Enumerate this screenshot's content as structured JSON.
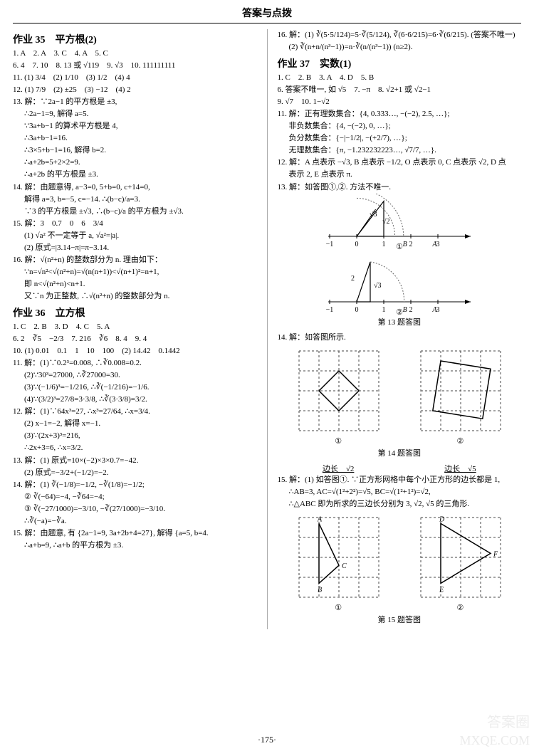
{
  "header": "答案与点拨",
  "page_number": "·175·",
  "watermark1": "MXQE.COM",
  "watermark2": "答案圈",
  "colors": {
    "text": "#000000",
    "bg": "#ffffff",
    "divider": "#aaaaaa",
    "grid_dash": "#444444",
    "curve_dash": "#666666",
    "watermark": "#dddddd"
  },
  "left": {
    "sec35": {
      "title": "作业 35　平方根(2)",
      "l1": "1. A　2. A　3. C　4. A　5. C",
      "l2": "6. 4　7. 10　8. 13 或 √119　9. √3　10. 111111111",
      "l3": "11. (1) 3/4　(2) 1/10　(3) 1/2　(4) 4",
      "l4": "12. (1) 7/9　(2) ±25　(3) −12　(4) 2",
      "l5": "13. 解：∵2a−1 的平方根是 ±3,",
      "l6": "∴2a−1=9, 解得 a=5.",
      "l7": "∵3a+b−1 的算术平方根是 4,",
      "l8": "∴3a+b−1=16.",
      "l9": "∴3×5+b−1=16, 解得 b=2.",
      "l10": "∴a+2b=5+2×2=9.",
      "l11": "∴a+2b 的平方根是 ±3.",
      "l12": "14. 解：由题意得, a−3=0, 5+b=0, c+14=0,",
      "l13": "解得 a=3, b=−5, c=−14. ∴(b−c)/a=3.",
      "l14": "∵3 的平方根是 ±√3, ∴(b−c)/a 的平方根为 ±√3.",
      "l15": "15. 解：3　0.7　0　6　3/4",
      "l16": "(1) √a² 不一定等于 a, √a²=|a|.",
      "l17": "(2) 原式=|3.14−π|=π−3.14.",
      "l18": "16. 解：√(n²+n) 的整数部分为 n. 理由如下：",
      "l19": "∵n=√n²<√(n²+n)=√(n(n+1))<√(n+1)²=n+1,",
      "l20": "即 n<√(n²+n)<n+1.",
      "l21": "又∵n 为正整数, ∴√(n²+n) 的整数部分为 n."
    },
    "sec36": {
      "title": "作业 36　立方根",
      "l1": "1. C　2. B　3. D　4. C　5. A",
      "l2": "6. 2　∛5　−2/3　7. 216　∛6　8. 4　9. 4",
      "l3": "10. (1) 0.01　0.1　1　10　100　(2) 14.42　0.1442",
      "l4": "11. 解：(1)∵0.2³=0.008, ∴∛0.008=0.2.",
      "l5": "(2)∵30³=27000, ∴∛27000=30.",
      "l6": "(3)∵(−1/6)³=−1/216, ∴∛(−1/216)=−1/6.",
      "l7": "(4)∵(3/2)³=27/8=3·3/8, ∴∛(3·3/8)=3/2.",
      "l8": "12. 解：(1)∵64x³=27, ∴x³=27/64, ∴x=3/4.",
      "l9": "(2) x−1=−2, 解得 x=−1.",
      "l10": "(3)∵(2x+3)³=216,",
      "l11": "∴2x+3=6, ∴x=3/2.",
      "l12": "13. 解：(1) 原式=10×(−2)×3×0.7=−42.",
      "l13": "(2) 原式=−3/2+(−1/2)=−2.",
      "l14": "14. 解：(1) ∛(−1/8)=−1/2, −∛(1/8)=−1/2;",
      "l15": "② ∛(−64)=−4, −∛64=−4;",
      "l16": "③ ∛(−27/1000)=−3/10, −∛(27/1000)=−3/10.",
      "l17": "∴∛(−a)=−∛a.",
      "l18": "15. 解：由题意, 有 {2a−1=9, 3a+2b+4=27}, 解得 {a=5, b=4.",
      "l19": "∴a+b=9, ∴a+b 的平方根为 ±3."
    }
  },
  "right": {
    "cont16": {
      "l1": "16. 解：(1) ∛(5·5/124)=5·∛(5/124), ∛(6·6/215)=6·∛(6/215). (答案不唯一)",
      "l2": "(2) ∛(n+n/(n³−1))=n·∛(n/(n³−1)) (n≥2)."
    },
    "sec37": {
      "title": "作业 37　实数(1)",
      "l1": "1. C　2. B　3. A　4. D　5. B",
      "l2": "6. 答案不唯一, 如 √5　7. −π　8. √2+1 或 √2−1",
      "l3": "9. √7　10. 1−√2",
      "l4": "11. 解：正有理数集合：{4, 0.333…, −(−2), 2.5, …};",
      "l5": "非负数集合：{4, −(−2), 0, …};",
      "l6": "负分数集合：{−|−1/2|, −(+2/7), …};",
      "l7": "无理数集合：{π, −1.232232223…, √7/7, …}.",
      "l8": "12. 解：A 点表示 −√3, B 点表示 −1/2, O 点表示 0, C 点表示 √2, D 点",
      "l9": "表示 2, E 点表示 π.",
      "l10": "13. 解：如答图①,②. 方法不唯一.",
      "cap13": "第 13 题答图",
      "l14": "14. 解：如答图所示.",
      "cap14": "第 14 题答图",
      "edge1": "边长　√2",
      "edge2": "边长　√5",
      "l15a": "15. 解：(1) 如答图①. ∵正方形网格中每个小正方形的边长都是 1,",
      "l15b": "∴AB=3, AC=√(1²+2²)=√5, BC=√(1²+1²)=√2,",
      "l15c": "∴△ABC 即为所求的三边长分别为 3, √2, √5 的三角形.",
      "cap15": "第 15 题答图"
    }
  },
  "figures": {
    "numline1": {
      "ticks": [
        -1,
        0,
        1,
        2,
        3
      ],
      "tick_labels": [
        "−1",
        "0",
        "1",
        "2",
        "3"
      ],
      "letters_x": {
        "B": 1.7,
        "A": 2.8
      },
      "labels": {
        "sqrt3": "√3",
        "sqrt2": "√2"
      },
      "triangle_coords": [
        [
          0,
          0
        ],
        [
          1,
          0
        ],
        [
          1,
          1.3
        ]
      ],
      "inner_line": [
        [
          0,
          0
        ],
        [
          0.7,
          1.0
        ]
      ],
      "arc_r1": 1.73,
      "arc_r2": 1.41,
      "circled": "①"
    },
    "numline2": {
      "ticks": [
        -1,
        0,
        1,
        2,
        3
      ],
      "tick_labels": [
        "−1",
        "0",
        "1",
        "2",
        "3"
      ],
      "letters_x": {
        "B": 1.7,
        "A": 2.8
      },
      "labels": {
        "two": "2",
        "sqrt3": "√3"
      },
      "triangle_coords": [
        [
          0,
          0
        ],
        [
          0.5,
          0
        ],
        [
          0.5,
          2
        ]
      ],
      "arc_r": 2.06,
      "circled": "②"
    },
    "grid14a": {
      "size": 4,
      "square_pts": [
        [
          1,
          2
        ],
        [
          2,
          1
        ],
        [
          3,
          2
        ],
        [
          2,
          3
        ]
      ],
      "circled": "①"
    },
    "grid14b": {
      "size": 4,
      "square_pts": [
        [
          1,
          0.5
        ],
        [
          3.5,
          0.9
        ],
        [
          3.1,
          3.4
        ],
        [
          0.6,
          3.0
        ]
      ],
      "circled": "②"
    },
    "grid15a": {
      "size": 4,
      "A": [
        1,
        0.3
      ],
      "B": [
        1,
        3.3
      ],
      "C": [
        2,
        2.4
      ],
      "circled": "①"
    },
    "grid15b": {
      "size": 4,
      "D": [
        1,
        0.3
      ],
      "E": [
        1,
        3.3
      ],
      "F": [
        3.5,
        1.8
      ],
      "circled": "②"
    }
  }
}
